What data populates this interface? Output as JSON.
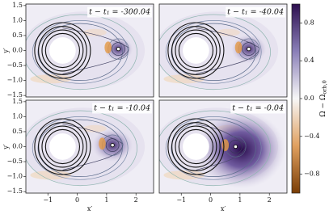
{
  "chart_data": [
    {
      "type": "contour",
      "annotation": "t − t₁ = -300.04",
      "ylabel": "y′",
      "xlim": [
        -1.75,
        2.6
      ],
      "ylim": [
        -1.55,
        1.55
      ],
      "yticks": [
        {
          "value": 1.5,
          "label": "1.5"
        },
        {
          "value": 1.0,
          "label": "1.0"
        },
        {
          "value": 0.5,
          "label": "0.5"
        },
        {
          "value": 0.0,
          "label": "0.0"
        },
        {
          "value": -0.5,
          "label": "−0.5"
        },
        {
          "value": -1.0,
          "label": "−1.0"
        },
        {
          "value": -1.5,
          "label": "−1.5"
        }
      ]
    },
    {
      "type": "contour",
      "annotation": "t − t₁ = -40.04",
      "xlim": [
        -1.75,
        2.6
      ],
      "ylim": [
        -1.55,
        1.55
      ]
    },
    {
      "type": "contour",
      "annotation": "t − t₁ = -10.04",
      "ylabel": "y′",
      "xlabel": "x′",
      "xlim": [
        -1.75,
        2.6
      ],
      "ylim": [
        -1.55,
        1.55
      ],
      "xticks": [
        {
          "value": -1,
          "label": "−1"
        },
        0,
        1,
        2
      ],
      "yticks": [
        {
          "value": 1.5,
          "label": "1.5"
        },
        {
          "value": 1.0,
          "label": "1.0"
        },
        {
          "value": 0.5,
          "label": "0.5"
        },
        {
          "value": 0.0,
          "label": "0.0"
        },
        {
          "value": -0.5,
          "label": "−0.5"
        },
        {
          "value": -1.0,
          "label": "−1.0"
        },
        {
          "value": -1.5,
          "label": "−1.5"
        }
      ]
    },
    {
      "type": "contour",
      "annotation": "t − t₁ = -0.04",
      "xlabel": "x′",
      "xlim": [
        -1.75,
        2.6
      ],
      "ylim": [
        -1.55,
        1.55
      ],
      "xticks": [
        {
          "value": -1,
          "label": "−1"
        },
        0,
        1,
        2
      ]
    }
  ],
  "colorbar": {
    "label_main": "Ω − Ω",
    "label_sub": "orb,0",
    "lim": [
      -1.0,
      1.0
    ],
    "ticks": [
      0.8,
      0.4,
      {
        "value": 0.0,
        "label": "0.0"
      },
      {
        "value": -0.4,
        "label": "−0.4"
      },
      {
        "value": -0.8,
        "label": "−0.8"
      }
    ],
    "colors": [
      "#7a3d05",
      "#e0a060",
      "#f7f7f7",
      "#8a7fb8",
      "#2d0f4f"
    ]
  }
}
